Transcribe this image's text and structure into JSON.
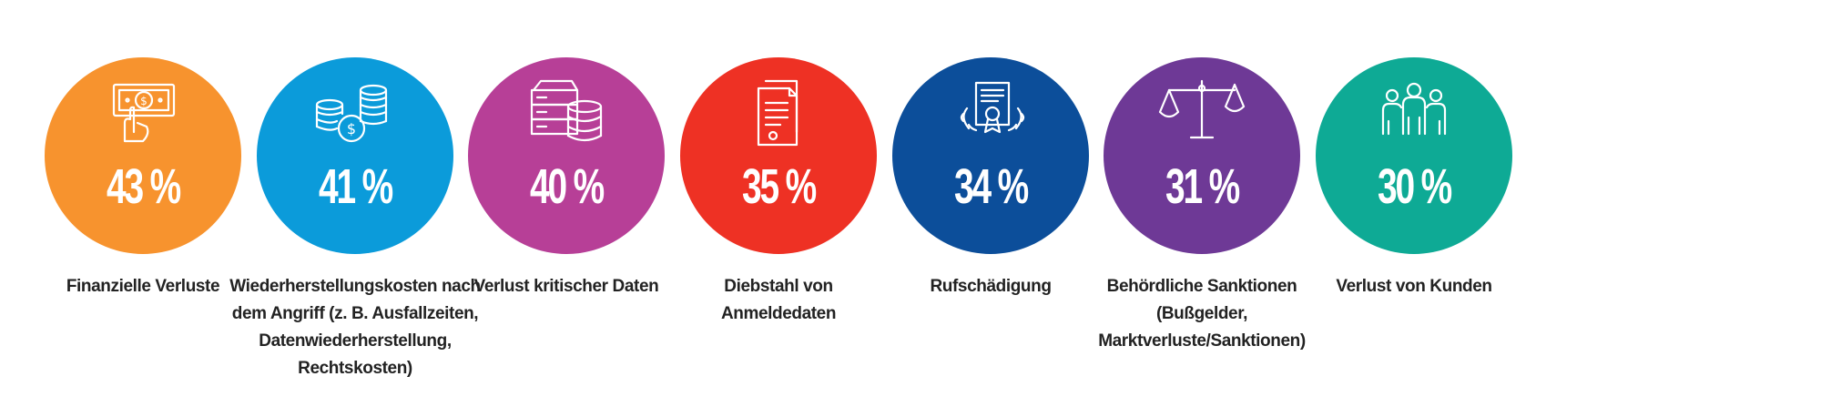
{
  "chart_data": {
    "type": "bar",
    "categories": [
      "Finanzielle Verluste",
      "Wiederherstellungskosten nach dem Angriff (z. B. Ausfallzeiten, Datenwiederherstellung, Rechtskosten)",
      "Verlust kritischer Daten",
      "Diebstahl von Anmeldedaten",
      "Rufschädigung",
      "Behördliche Sanktionen (Bußgelder, Marktverluste/Sanktionen)",
      "Verlust von Kunden"
    ],
    "values": [
      43,
      41,
      40,
      35,
      34,
      31,
      30
    ],
    "unit": "%"
  },
  "items": [
    {
      "percent": "43 %",
      "label_lines": [
        "Finanzielle Verluste"
      ],
      "color": "#F7932E",
      "icon": "money-hand-icon"
    },
    {
      "percent": "41 %",
      "label_lines": [
        "Wiederherstellungskosten nach",
        "dem Angriff (z. B. Ausfallzeiten,",
        "Datenwiederherstellung,",
        "Rechtskosten)"
      ],
      "color": "#0B9BDA",
      "icon": "coins-dollar-icon"
    },
    {
      "percent": "40 %",
      "label_lines": [
        "Verlust kritischer Daten"
      ],
      "color": "#B73F97",
      "icon": "server-database-icon"
    },
    {
      "percent": "35 %",
      "label_lines": [
        "Diebstahl von",
        "Anmeldedaten"
      ],
      "color": "#EE3124",
      "icon": "documents-icon"
    },
    {
      "percent": "34 %",
      "label_lines": [
        "Rufschädigung"
      ],
      "color": "#0C4E9A",
      "icon": "certificate-laurel-icon"
    },
    {
      "percent": "31 %",
      "label_lines": [
        "Behördliche Sanktionen",
        "(Bußgelder,",
        "Marktverluste/Sanktionen)"
      ],
      "color": "#6E3996",
      "icon": "scales-icon"
    },
    {
      "percent": "30 %",
      "label_lines": [
        "Verlust von Kunden"
      ],
      "color": "#0EAA95",
      "icon": "people-group-icon"
    }
  ]
}
